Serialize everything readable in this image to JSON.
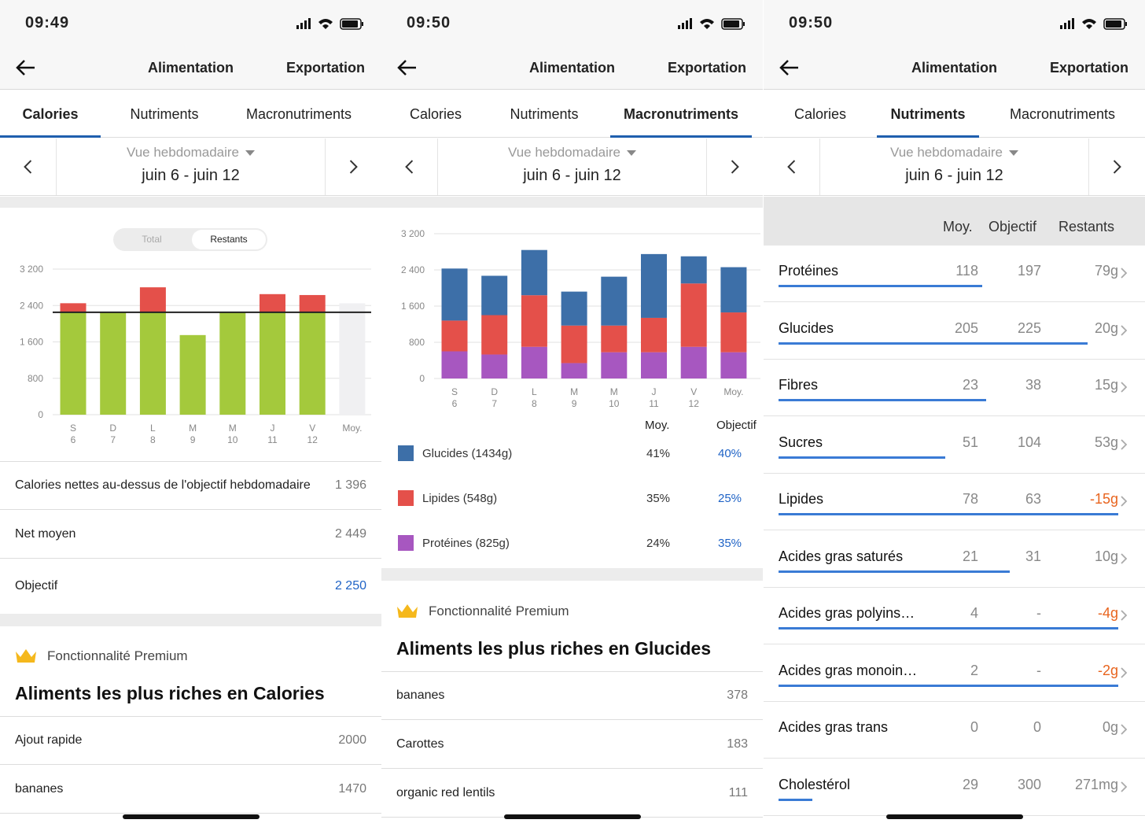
{
  "status": {
    "time1": "09:49",
    "time2": "09:50",
    "time3": "09:50"
  },
  "nav": {
    "title": "Alimentation",
    "export": "Exportation"
  },
  "tabs": {
    "calories": "Calories",
    "nutriments": "Nutriments",
    "macros": "Macronutriments"
  },
  "week": {
    "view": "Vue hebdomadaire",
    "range": "juin 6 - juin 12"
  },
  "toggle": {
    "total": "Total",
    "remaining": "Restants"
  },
  "calories_chart_data": {
    "type": "bar",
    "categories": [
      {
        "d": "S",
        "n": "6"
      },
      {
        "d": "D",
        "n": "7"
      },
      {
        "d": "L",
        "n": "8"
      },
      {
        "d": "M",
        "n": "9"
      },
      {
        "d": "M",
        "n": "10"
      },
      {
        "d": "J",
        "n": "11"
      },
      {
        "d": "V",
        "n": "12"
      },
      {
        "d": "Moy.",
        "n": ""
      }
    ],
    "goal": 2250,
    "values": [
      2450,
      2250,
      2800,
      1750,
      2250,
      2650,
      2630,
      2449
    ],
    "ylim": [
      0,
      3200
    ],
    "yticks": [
      "0",
      "800",
      "1 600",
      "2 400",
      "3 200"
    ],
    "colors": {
      "under": "#a4c93c",
      "over": "#e4504a",
      "goal": "#222222",
      "avg": "#f0f0f2"
    }
  },
  "summary": {
    "net_above_label": "Calories nettes au-dessus de l'objectif hebdomadaire",
    "net_above_value": "1 396",
    "avg_label": "Net moyen",
    "avg_value": "2 449",
    "goal_label": "Objectif",
    "goal_value": "2 250"
  },
  "premium": {
    "label": "Fonctionnalité Premium",
    "title_cal": "Aliments les plus riches en Calories",
    "title_carb": "Aliments les plus riches en Glucides"
  },
  "top_calories": [
    {
      "name": "Ajout rapide",
      "val": "2000"
    },
    {
      "name": "bananes",
      "val": "1470"
    }
  ],
  "macro_chart_data": {
    "type": "bar",
    "stacked": true,
    "categories": [
      {
        "d": "S",
        "n": "6"
      },
      {
        "d": "D",
        "n": "7"
      },
      {
        "d": "L",
        "n": "8"
      },
      {
        "d": "M",
        "n": "9"
      },
      {
        "d": "M",
        "n": "10"
      },
      {
        "d": "J",
        "n": "11"
      },
      {
        "d": "V",
        "n": "12"
      },
      {
        "d": "Moy.",
        "n": ""
      }
    ],
    "ylim": [
      0,
      3200
    ],
    "yticks": [
      "0",
      "800",
      "1 600",
      "2 400",
      "3 200"
    ],
    "series": [
      {
        "name": "Protéines",
        "color": "#a757c0",
        "values": [
          600,
          530,
          700,
          340,
          580,
          580,
          700,
          580
        ]
      },
      {
        "name": "Lipides",
        "color": "#e4504a",
        "values": [
          680,
          870,
          1140,
          830,
          590,
          760,
          1400,
          880
        ]
      },
      {
        "name": "Glucides",
        "color": "#3d6fa8",
        "values": [
          1150,
          870,
          1000,
          750,
          1080,
          1410,
          600,
          1000
        ]
      }
    ]
  },
  "macro_table": {
    "h_avg": "Moy.",
    "h_goal": "Objectif",
    "rows": [
      {
        "name": "Glucides (1434g)",
        "color": "#3d6fa8",
        "avg": "41%",
        "goal": "40%"
      },
      {
        "name": "Lipides (548g)",
        "color": "#e4504a",
        "avg": "35%",
        "goal": "25%"
      },
      {
        "name": "Protéines (825g)",
        "color": "#a757c0",
        "avg": "24%",
        "goal": "35%"
      }
    ]
  },
  "top_carbs": [
    {
      "name": "bananes",
      "val": "378"
    },
    {
      "name": "Carottes",
      "val": "183"
    },
    {
      "name": "organic red lentils",
      "val": "111"
    }
  ],
  "nutrients": {
    "h_avg": "Moy.",
    "h_goal": "Objectif",
    "h_rem": "Restants",
    "rows": [
      {
        "name": "Protéines",
        "avg": "118",
        "goal": "197",
        "rem": "79g",
        "neg": false,
        "fill": 0.6
      },
      {
        "name": "Glucides",
        "avg": "205",
        "goal": "225",
        "rem": "20g",
        "neg": false,
        "fill": 0.91
      },
      {
        "name": "Fibres",
        "avg": "23",
        "goal": "38",
        "rem": "15g",
        "neg": false,
        "fill": 0.61
      },
      {
        "name": "Sucres",
        "avg": "51",
        "goal": "104",
        "rem": "53g",
        "neg": false,
        "fill": 0.49
      },
      {
        "name": "Lipides",
        "avg": "78",
        "goal": "63",
        "rem": "-15g",
        "neg": true,
        "fill": 1
      },
      {
        "name": "Acides gras saturés",
        "avg": "21",
        "goal": "31",
        "rem": "10g",
        "neg": false,
        "fill": 0.68
      },
      {
        "name": "Acides gras polyins…",
        "avg": "4",
        "goal": "-",
        "rem": "-4g",
        "neg": true,
        "fill": 1
      },
      {
        "name": "Acides gras monoin…",
        "avg": "2",
        "goal": "-",
        "rem": "-2g",
        "neg": true,
        "fill": 1
      },
      {
        "name": "Acides gras trans",
        "avg": "0",
        "goal": "0",
        "rem": "0g",
        "neg": false,
        "fill": 0
      },
      {
        "name": "Cholestérol",
        "avg": "29",
        "goal": "300",
        "rem": "271mg",
        "neg": false,
        "fill": 0.1
      }
    ]
  }
}
